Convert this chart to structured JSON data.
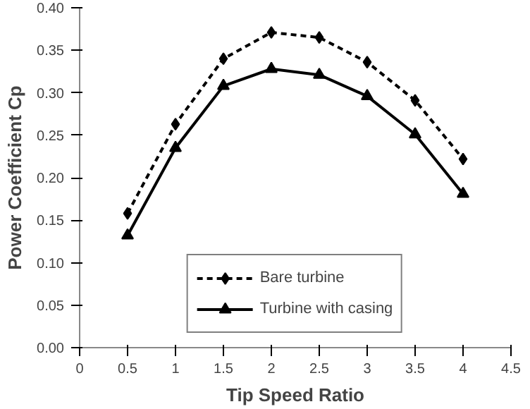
{
  "chart_data": {
    "type": "line",
    "xlabel": "Tip Speed Ratio",
    "ylabel": "Power Coefficient Cp",
    "x": [
      0.5,
      1,
      1.5,
      2,
      2.5,
      3,
      3.5,
      4
    ],
    "series": [
      {
        "name": "Bare turbine",
        "color": "#000000",
        "marker": "diamond",
        "line_style": "dashed",
        "values": [
          0.158,
          0.263,
          0.34,
          0.371,
          0.365,
          0.336,
          0.291,
          0.222
        ]
      },
      {
        "name": "Turbine with casing",
        "color": "#000000",
        "marker": "triangle",
        "line_style": "solid",
        "values": [
          0.132,
          0.235,
          0.308,
          0.328,
          0.321,
          0.296,
          0.251,
          0.181
        ]
      }
    ],
    "xlim": [
      0,
      4.5
    ],
    "xticks": [
      0,
      0.5,
      1,
      1.5,
      2,
      2.5,
      3,
      3.5,
      4,
      4.5
    ],
    "ylim": [
      0,
      0.4
    ],
    "yticks": [
      {
        "value": 0,
        "label": "0.00"
      },
      {
        "value": 0.05,
        "label": "0.05"
      },
      {
        "value": 0.1,
        "label": "0.10"
      },
      {
        "value": 0.15,
        "label": "0.15"
      },
      {
        "value": 0.2,
        "label": "0.20"
      },
      {
        "value": 0.25,
        "label": "0.25"
      },
      {
        "value": 0.3,
        "label": "0.30"
      },
      {
        "value": 0.35,
        "label": "0.35"
      },
      {
        "value": 0.4,
        "label": "0.40"
      }
    ],
    "legend": "bottom",
    "grid": false
  }
}
